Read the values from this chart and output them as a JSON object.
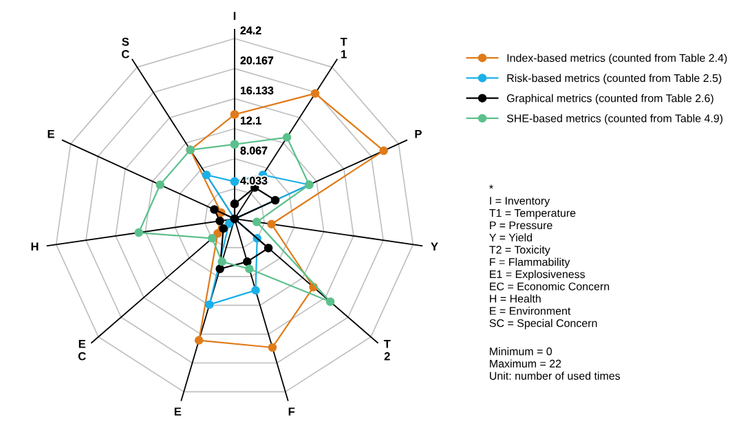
{
  "chart_data": {
    "type": "radar",
    "categories": [
      "I",
      "T1",
      "P",
      "Y",
      "T2",
      "F",
      "E",
      "EC",
      "H",
      "E",
      "SC"
    ],
    "ylim": [
      0,
      24.2
    ],
    "yticks": [
      4.033,
      8.067,
      12.1,
      16.133,
      20.167,
      24.2
    ],
    "grid": true,
    "legend": "top right",
    "marker": "circle",
    "series": [
      {
        "name": "Index-based metrics (counted from Table 2.4)",
        "color": "#e07b1a",
        "values": [
          14,
          20,
          22,
          5,
          14,
          18,
          17,
          3,
          2,
          2,
          11
        ]
      },
      {
        "name": "Risk-based metrics (counted from Table 2.5)",
        "color": "#1ab0e8",
        "values": [
          5,
          7,
          11,
          0,
          4,
          10,
          12,
          1,
          0,
          0,
          7
        ]
      },
      {
        "name": "Graphical metrics (counted from Table 2.6)",
        "color": "#000000",
        "values": [
          2,
          5,
          6,
          0,
          6,
          6,
          7,
          2,
          2,
          3,
          0
        ]
      },
      {
        "name": "SHE-based metrics (counted from Table 4.9)",
        "color": "#5cc08c",
        "values": [
          10,
          13,
          11,
          3,
          17,
          7,
          6,
          4,
          13,
          11,
          11
        ]
      }
    ],
    "annotations": [
      "*\nI = Inventory\nT1 = Temperature\nP = Pressure\nY = Yield\nT2 = Toxicity\nF = Flammability\nE1 = Explosiveness\nEC = Economic Concern\nH = Health\nE = Environment\nSC = Special Concern",
      "Minimum = 0\nMaximum = 22\nUnit: number of used times"
    ]
  }
}
